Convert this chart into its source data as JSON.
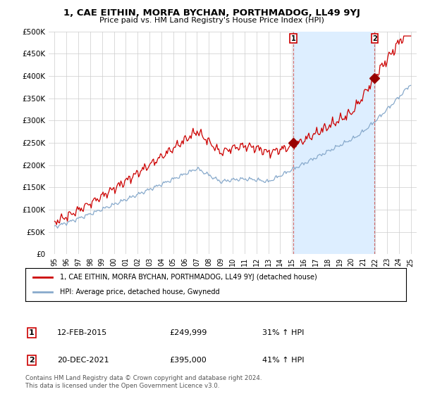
{
  "title": "1, CAE EITHIN, MORFA BYCHAN, PORTHMADOG, LL49 9YJ",
  "subtitle": "Price paid vs. HM Land Registry's House Price Index (HPI)",
  "ylabel_ticks": [
    "£0",
    "£50K",
    "£100K",
    "£150K",
    "£200K",
    "£250K",
    "£300K",
    "£350K",
    "£400K",
    "£450K",
    "£500K"
  ],
  "ylim": [
    0,
    500000
  ],
  "xlim_start": 1994.5,
  "xlim_end": 2025.5,
  "red_line_color": "#cc0000",
  "blue_line_color": "#88aacc",
  "shade_color": "#ddeeff",
  "marker1_x": 2015.1,
  "marker1_y": 249999,
  "marker1_label": "1",
  "marker1_date": "12-FEB-2015",
  "marker1_price": "£249,999",
  "marker1_hpi": "31% ↑ HPI",
  "marker2_x": 2021.96,
  "marker2_y": 395000,
  "marker2_label": "2",
  "marker2_date": "20-DEC-2021",
  "marker2_price": "£395,000",
  "marker2_hpi": "41% ↑ HPI",
  "legend_line1": "1, CAE EITHIN, MORFA BYCHAN, PORTHMADOG, LL49 9YJ (detached house)",
  "legend_line2": "HPI: Average price, detached house, Gwynedd",
  "footnote1": "Contains HM Land Registry data © Crown copyright and database right 2024.",
  "footnote2": "This data is licensed under the Open Government Licence v3.0.",
  "background_color": "#ffffff",
  "grid_color": "#cccccc",
  "xtick_labels": [
    "95",
    "96",
    "97",
    "98",
    "99",
    "00",
    "01",
    "02",
    "03",
    "04",
    "05",
    "06",
    "07",
    "08",
    "09",
    "10",
    "11",
    "12",
    "13",
    "14",
    "15",
    "16",
    "17",
    "18",
    "19",
    "20",
    "21",
    "22",
    "23",
    "24",
    "25"
  ]
}
